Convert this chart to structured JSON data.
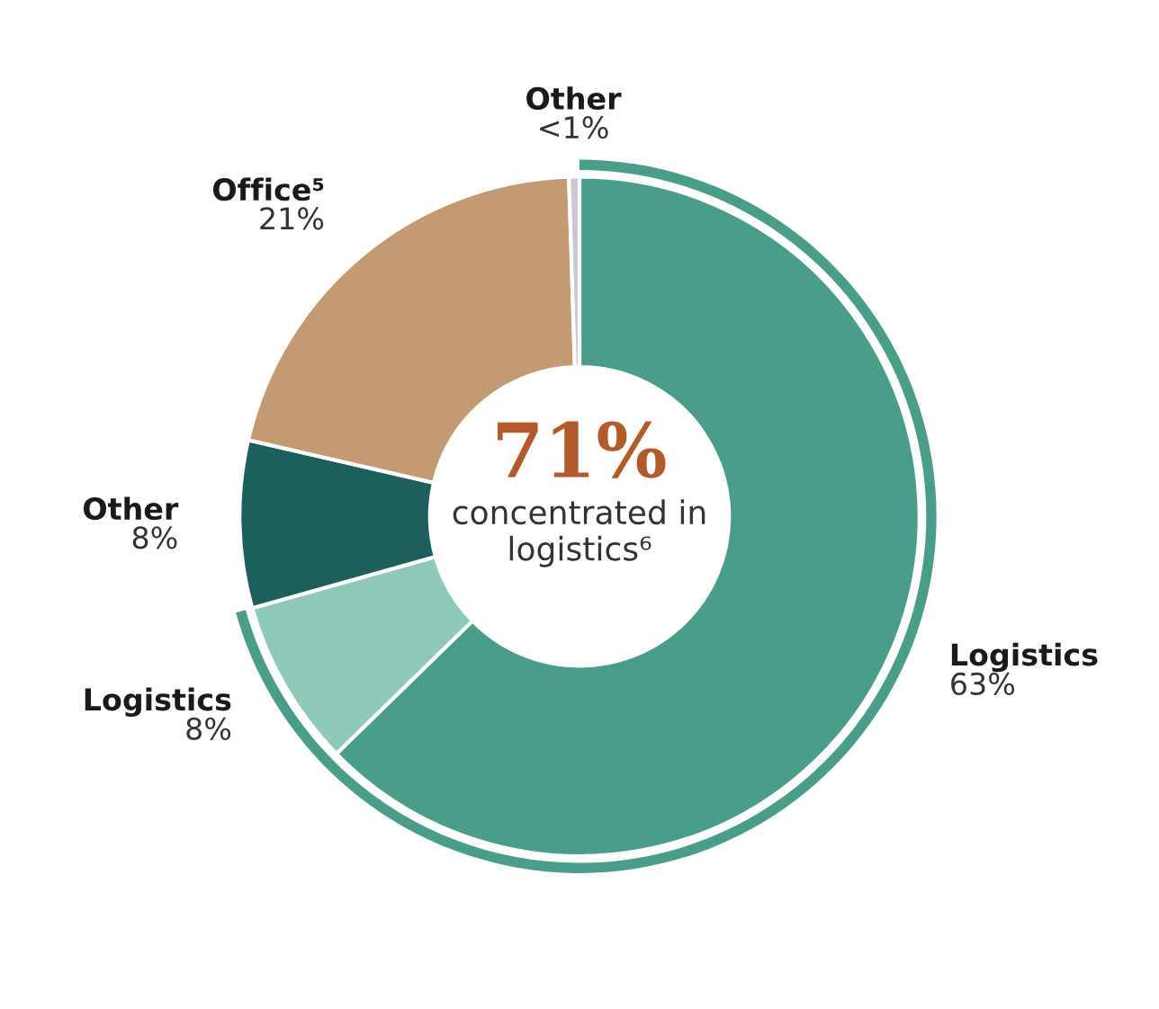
{
  "chart_data": {
    "type": "donut",
    "categories": [
      "Logistics",
      "Logistics",
      "Other",
      "Office⁵",
      "Other"
    ],
    "values": [
      63,
      8,
      8,
      21,
      0.5
    ],
    "value_labels": [
      "63%",
      "8%",
      "8%",
      "21%",
      "<1%"
    ],
    "colors": [
      "#4a9e89",
      "#8fc9b9",
      "#1d5f5c",
      "#c49a73",
      "#c9c9d2"
    ],
    "annotations": [
      "71%",
      "concentrated in logistics⁶"
    ],
    "legend": false
  }
}
